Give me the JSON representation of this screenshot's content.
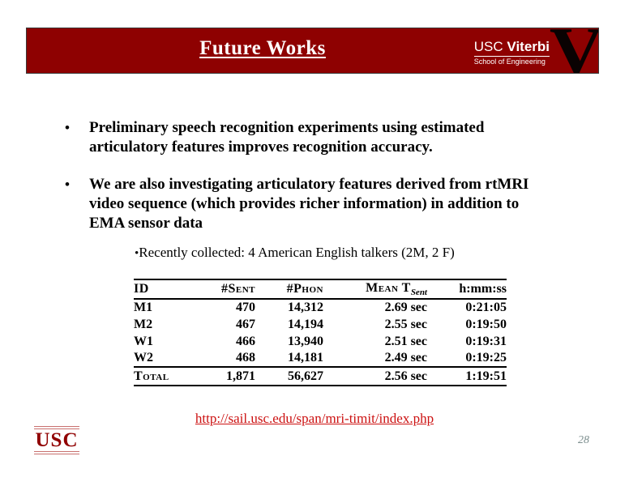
{
  "colors": {
    "header_bar_red": "#8e0101",
    "title_text": "#ffffff",
    "body_text": "#000000",
    "link_red": "#cc1111",
    "usc_wordmark_red": "#900000",
    "usc_rule_pink": "#c9716f",
    "page_number_gray": "#7d8f8f",
    "v_glyph_black": "#0a0202"
  },
  "header": {
    "title": "Future Works",
    "viterbi_logo": {
      "usc": "USC",
      "viterbi": "Viterbi",
      "school": "School of Engineering",
      "v_glyph": "V"
    }
  },
  "bullets": [
    {
      "marker": "•",
      "text": "Preliminary speech recognition experiments using estimated articulatory features improves recognition accuracy."
    },
    {
      "marker": "•",
      "text": "We are also investigating articulatory features derived from rtMRI video sequence (which provides richer information) in addition to EMA sensor data"
    }
  ],
  "sub_bullet": {
    "marker": "•",
    "text": "Recently collected: 4 American English talkers (2M, 2 F)"
  },
  "table": {
    "columns": [
      "ID",
      "#Sent",
      "#Phon",
      "Mean T",
      "h:mm:ss"
    ],
    "mean_t_subscript": "Sent",
    "rows": [
      [
        "M1",
        "470",
        "14,312",
        "2.69 sec",
        "0:21:05"
      ],
      [
        "M2",
        "467",
        "14,194",
        "2.55 sec",
        "0:19:50"
      ],
      [
        "W1",
        "466",
        "13,940",
        "2.51 sec",
        "0:19:31"
      ],
      [
        "W2",
        "468",
        "14,181",
        "2.49 sec",
        "0:19:25"
      ]
    ],
    "total": [
      "Total",
      "1,871",
      "56,627",
      "2.56 sec",
      "1:19:51"
    ]
  },
  "link": {
    "text": "http://sail.usc.edu/span/mri-timit/index.php"
  },
  "footer": {
    "usc_wordmark": "USC",
    "page_number": "28"
  }
}
